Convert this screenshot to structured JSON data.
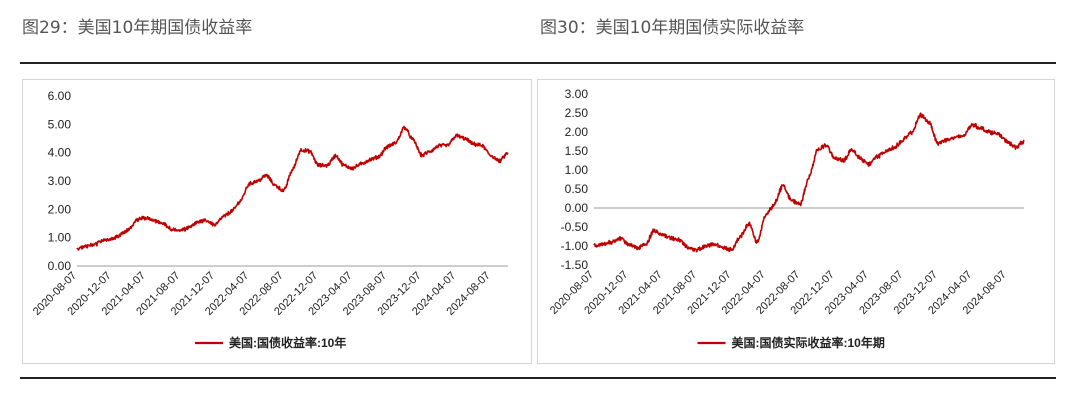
{
  "captions": {
    "left": "图29：美国10年期国债收益率",
    "right": "图30：美国10年期国债实际收益率"
  },
  "colors": {
    "series": "#c00000",
    "axis": "#999999"
  },
  "chart_data": [
    {
      "type": "line",
      "title": "",
      "xlabel": "",
      "ylabel": "",
      "ylim": [
        0.0,
        6.0
      ],
      "yticks": [
        "6.00",
        "5.00",
        "4.00",
        "3.00",
        "2.00",
        "1.00",
        "0.00"
      ],
      "xticks": [
        "2020-08-07",
        "2020-12-07",
        "2021-04-07",
        "2021-08-07",
        "2021-12-07",
        "2022-04-07",
        "2022-08-07",
        "2022-12-07",
        "2023-04-07",
        "2023-08-07",
        "2023-12-07",
        "2024-04-07",
        "2024-08-07"
      ],
      "grid": false,
      "legend": "bottom-center",
      "series": [
        {
          "name": "美国:国债收益率:10年",
          "x": [
            "2020-08-07",
            "2020-09-07",
            "2020-10-07",
            "2020-11-07",
            "2020-12-07",
            "2021-01-07",
            "2021-02-07",
            "2021-03-07",
            "2021-04-07",
            "2021-05-07",
            "2021-06-07",
            "2021-07-07",
            "2021-08-07",
            "2021-09-07",
            "2021-10-07",
            "2021-11-07",
            "2021-12-07",
            "2022-01-07",
            "2022-02-07",
            "2022-03-07",
            "2022-04-07",
            "2022-05-07",
            "2022-06-07",
            "2022-07-07",
            "2022-08-07",
            "2022-09-07",
            "2022-10-07",
            "2022-11-07",
            "2022-12-07",
            "2023-01-07",
            "2023-02-07",
            "2023-03-07",
            "2023-04-07",
            "2023-05-07",
            "2023-06-07",
            "2023-07-07",
            "2023-08-07",
            "2023-09-07",
            "2023-10-07",
            "2023-11-07",
            "2023-12-07",
            "2024-01-07",
            "2024-02-07",
            "2024-03-07",
            "2024-04-07",
            "2024-05-07",
            "2024-06-07",
            "2024-07-07",
            "2024-08-07",
            "2024-09-07",
            "2024-10-07"
          ],
          "values": [
            0.6,
            0.7,
            0.75,
            0.9,
            0.95,
            1.1,
            1.3,
            1.65,
            1.7,
            1.6,
            1.5,
            1.3,
            1.25,
            1.35,
            1.55,
            1.6,
            1.45,
            1.75,
            1.95,
            2.3,
            2.9,
            3.0,
            3.2,
            2.85,
            2.65,
            3.4,
            4.1,
            4.05,
            3.55,
            3.55,
            3.9,
            3.55,
            3.45,
            3.6,
            3.75,
            3.85,
            4.2,
            4.35,
            4.9,
            4.45,
            3.9,
            4.05,
            4.25,
            4.25,
            4.6,
            4.5,
            4.3,
            4.25,
            3.9,
            3.7,
            4.0
          ]
        }
      ]
    },
    {
      "type": "line",
      "title": "",
      "xlabel": "",
      "ylabel": "",
      "ylim": [
        -1.5,
        3.0
      ],
      "yticks": [
        "3.00",
        "2.50",
        "2.00",
        "1.50",
        "1.00",
        "0.50",
        "0.00",
        "-0.50",
        "-1.00",
        "-1.50"
      ],
      "xticks": [
        "2020-08-07",
        "2020-12-07",
        "2021-04-07",
        "2021-08-07",
        "2021-12-07",
        "2022-04-07",
        "2022-08-07",
        "2022-12-07",
        "2023-04-07",
        "2023-08-07",
        "2023-12-07",
        "2024-04-07",
        "2024-08-07"
      ],
      "grid": false,
      "legend": "bottom-center",
      "series": [
        {
          "name": "美国:国债实际收益率:10年期",
          "x": [
            "2020-08-07",
            "2020-09-07",
            "2020-10-07",
            "2020-11-07",
            "2020-12-07",
            "2021-01-07",
            "2021-02-07",
            "2021-03-07",
            "2021-04-07",
            "2021-05-07",
            "2021-06-07",
            "2021-07-07",
            "2021-08-07",
            "2021-09-07",
            "2021-10-07",
            "2021-11-07",
            "2021-12-07",
            "2022-01-07",
            "2022-02-07",
            "2022-03-07",
            "2022-04-07",
            "2022-05-07",
            "2022-06-07",
            "2022-07-07",
            "2022-08-07",
            "2022-09-07",
            "2022-10-07",
            "2022-11-07",
            "2022-12-07",
            "2023-01-07",
            "2023-02-07",
            "2023-03-07",
            "2023-04-07",
            "2023-05-07",
            "2023-06-07",
            "2023-07-07",
            "2023-08-07",
            "2023-09-07",
            "2023-10-07",
            "2023-11-07",
            "2023-12-07",
            "2024-01-07",
            "2024-02-07",
            "2024-03-07",
            "2024-04-07",
            "2024-05-07",
            "2024-06-07",
            "2024-07-07",
            "2024-08-07",
            "2024-09-07",
            "2024-10-07"
          ],
          "values": [
            -1.0,
            -0.95,
            -0.9,
            -0.8,
            -0.95,
            -1.05,
            -0.95,
            -0.6,
            -0.7,
            -0.8,
            -0.85,
            -1.05,
            -1.1,
            -1.0,
            -0.95,
            -1.05,
            -1.1,
            -0.75,
            -0.4,
            -0.9,
            -0.2,
            0.1,
            0.6,
            0.2,
            0.1,
            0.8,
            1.55,
            1.65,
            1.3,
            1.25,
            1.55,
            1.3,
            1.15,
            1.35,
            1.5,
            1.6,
            1.8,
            2.0,
            2.45,
            2.25,
            1.7,
            1.8,
            1.85,
            1.9,
            2.2,
            2.1,
            2.0,
            1.95,
            1.75,
            1.6,
            1.75
          ]
        }
      ]
    }
  ]
}
